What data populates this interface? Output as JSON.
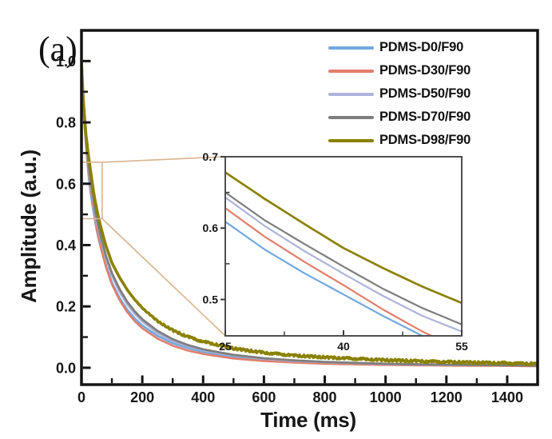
{
  "chart_data": {
    "type": "line",
    "panel_label": "(a)",
    "xlabel": "Time (ms)",
    "ylabel": "Amplitude (a.u.)",
    "axes": {
      "xlim": [
        0,
        1500
      ],
      "ylim": [
        -0.055,
        1.1
      ],
      "grid": false,
      "frame_color": "#141414",
      "x_ticks": {
        "major": [
          0,
          200,
          400,
          600,
          800,
          1000,
          1200,
          1400
        ],
        "labels": [
          "0",
          "200",
          "400",
          "600",
          "800",
          "1000",
          "1200",
          "1400"
        ],
        "minor": [
          100,
          300,
          500,
          700,
          900,
          1100,
          1300
        ]
      },
      "y_ticks": {
        "major": [
          0.0,
          0.2,
          0.4,
          0.6,
          0.8,
          1.0
        ],
        "labels": [
          "0.0",
          "0.2",
          "0.4",
          "0.6",
          "0.8",
          "1.0"
        ],
        "minor": [
          0.1,
          0.3,
          0.5,
          0.7,
          0.9
        ]
      }
    },
    "legend_position": "upper-right-inside",
    "x": [
      0,
      5,
      10,
      15,
      20,
      25,
      30,
      35,
      40,
      45,
      50,
      55,
      65,
      80,
      100,
      125,
      150,
      175,
      200,
      250,
      300,
      350,
      400,
      500,
      600,
      700,
      800,
      1000,
      1200,
      1400,
      1500
    ],
    "series": [
      {
        "name": "PDMS-D0/F90",
        "color": "#71A8DF",
        "width": 2.6,
        "noisy": false,
        "values": [
          1.0,
          0.868,
          0.786,
          0.718,
          0.661,
          0.609,
          0.57,
          0.537,
          0.507,
          0.477,
          0.449,
          0.425,
          0.385,
          0.334,
          0.278,
          0.228,
          0.19,
          0.161,
          0.138,
          0.104,
          0.08,
          0.064,
          0.052,
          0.036,
          0.027,
          0.021,
          0.017,
          0.012,
          0.009,
          0.007,
          0.007
        ]
      },
      {
        "name": "PDMS-D30/F90",
        "color": "#E17E6B",
        "width": 2.6,
        "noisy": false,
        "values": [
          1.0,
          0.874,
          0.794,
          0.727,
          0.673,
          0.628,
          0.588,
          0.553,
          0.52,
          0.486,
          0.455,
          0.43,
          0.388,
          0.33,
          0.272,
          0.221,
          0.182,
          0.152,
          0.129,
          0.095,
          0.072,
          0.056,
          0.045,
          0.03,
          0.022,
          0.017,
          0.013,
          0.009,
          0.007,
          0.006,
          0.005
        ]
      },
      {
        "name": "PDMS-D50/F90",
        "color": "#AEB3D9",
        "width": 2.8,
        "noisy": false,
        "values": [
          1.0,
          0.878,
          0.801,
          0.737,
          0.685,
          0.643,
          0.603,
          0.568,
          0.536,
          0.505,
          0.477,
          0.455,
          0.412,
          0.357,
          0.3,
          0.248,
          0.207,
          0.176,
          0.151,
          0.113,
          0.087,
          0.07,
          0.057,
          0.04,
          0.029,
          0.022,
          0.018,
          0.012,
          0.009,
          0.008,
          0.007
        ]
      },
      {
        "name": "PDMS-D70/F90",
        "color": "#7E7E7E",
        "width": 2.8,
        "noisy": false,
        "values": [
          1.0,
          0.882,
          0.807,
          0.744,
          0.693,
          0.65,
          0.611,
          0.578,
          0.546,
          0.515,
          0.488,
          0.465,
          0.422,
          0.366,
          0.309,
          0.257,
          0.216,
          0.184,
          0.158,
          0.12,
          0.093,
          0.074,
          0.06,
          0.042,
          0.031,
          0.024,
          0.019,
          0.013,
          0.01,
          0.008,
          0.007
        ]
      },
      {
        "name": "PDMS-D98/F90",
        "color": "#8A8100",
        "width": 3.6,
        "noisy": true,
        "values": [
          1.0,
          0.89,
          0.818,
          0.758,
          0.714,
          0.678,
          0.641,
          0.606,
          0.572,
          0.544,
          0.518,
          0.495,
          0.453,
          0.399,
          0.342,
          0.295,
          0.255,
          0.222,
          0.195,
          0.152,
          0.122,
          0.101,
          0.085,
          0.063,
          0.049,
          0.04,
          0.034,
          0.025,
          0.019,
          0.015,
          0.013
        ]
      }
    ],
    "inset": {
      "xlim": [
        25,
        55
      ],
      "ylim": [
        0.449,
        0.7
      ],
      "frame_color": "#3C3C3C",
      "x_ticks": {
        "major": [
          25,
          40,
          55
        ],
        "labels": [
          "25",
          "40",
          "55"
        ],
        "minor": [
          32.5,
          47.5
        ]
      },
      "y_ticks": {
        "major": [
          0.5,
          0.6,
          0.7
        ],
        "labels": [
          "0.5",
          "0.6",
          "0.7"
        ],
        "minor": [
          0.55,
          0.65
        ]
      },
      "values_at_25": {
        "PDMS-D0/F90": 0.609,
        "PDMS-D30/F90": 0.628,
        "PDMS-D50/F90": 0.643,
        "PDMS-D70/F90": 0.65,
        "PDMS-D98/F90": 0.678
      },
      "values_at_40": {
        "PDMS-D0/F90": 0.507,
        "PDMS-D30/F90": 0.52,
        "PDMS-D50/F90": 0.536,
        "PDMS-D70/F90": 0.546,
        "PDMS-D98/F90": 0.572
      },
      "values_at_55": {
        "PDMS-D50/F90": 0.455,
        "PDMS-D70/F90": 0.465,
        "PDMS-D98/F90": 0.495
      }
    },
    "zoom_region": {
      "t_range": [
        0,
        68
      ],
      "amp_range": [
        0.486,
        0.67
      ],
      "connector_color": "#D9B48F"
    }
  }
}
